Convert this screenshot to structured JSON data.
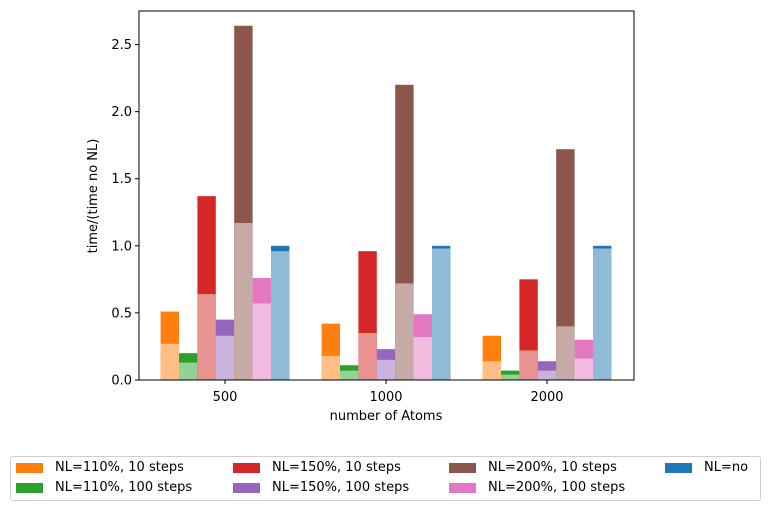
{
  "chart_data": {
    "type": "bar",
    "xlabel": "number of Atoms",
    "ylabel": "time/(time no NL)",
    "categories": [
      "500",
      "1000",
      "2000"
    ],
    "ylim": [
      0,
      2.75
    ],
    "yticks": [
      "0.0",
      "0.5",
      "1.0",
      "1.5",
      "2.0",
      "2.5"
    ],
    "grid": false,
    "legend_position": "bottom",
    "series": [
      {
        "name": "NL=110%, 10 steps",
        "color": "#ff7f0e",
        "light": "#ffbf86",
        "values": [
          0.51,
          0.42,
          0.33
        ],
        "inner_values": [
          0.27,
          0.18,
          0.14
        ]
      },
      {
        "name": "NL=110%, 100 steps",
        "color": "#2ca02c",
        "light": "#95d095",
        "values": [
          0.2,
          0.11,
          0.07
        ],
        "inner_values": [
          0.13,
          0.07,
          0.04
        ]
      },
      {
        "name": "NL=150%, 10 steps",
        "color": "#d62728",
        "light": "#ea9393",
        "values": [
          1.37,
          0.96,
          0.75
        ],
        "inner_values": [
          0.64,
          0.35,
          0.22
        ]
      },
      {
        "name": "NL=150%, 100 steps",
        "color": "#9467bd",
        "light": "#c9b3de",
        "values": [
          0.45,
          0.23,
          0.14
        ],
        "inner_values": [
          0.33,
          0.15,
          0.07
        ]
      },
      {
        "name": "NL=200%, 10 steps",
        "color": "#8c564b",
        "light": "#c5aaa5",
        "values": [
          2.64,
          2.2,
          1.72
        ],
        "inner_values": [
          1.17,
          0.72,
          0.4
        ]
      },
      {
        "name": "NL=200%, 100 steps",
        "color": "#e377c2",
        "light": "#f1bbe0",
        "values": [
          0.76,
          0.49,
          0.3
        ],
        "inner_values": [
          0.57,
          0.32,
          0.16
        ]
      },
      {
        "name": "NL=no",
        "color": "#1f77b4",
        "light": "#8fbbd9",
        "values": [
          1.0,
          1.0,
          1.0
        ],
        "inner_values": [
          0.96,
          0.98,
          0.98
        ]
      }
    ]
  }
}
